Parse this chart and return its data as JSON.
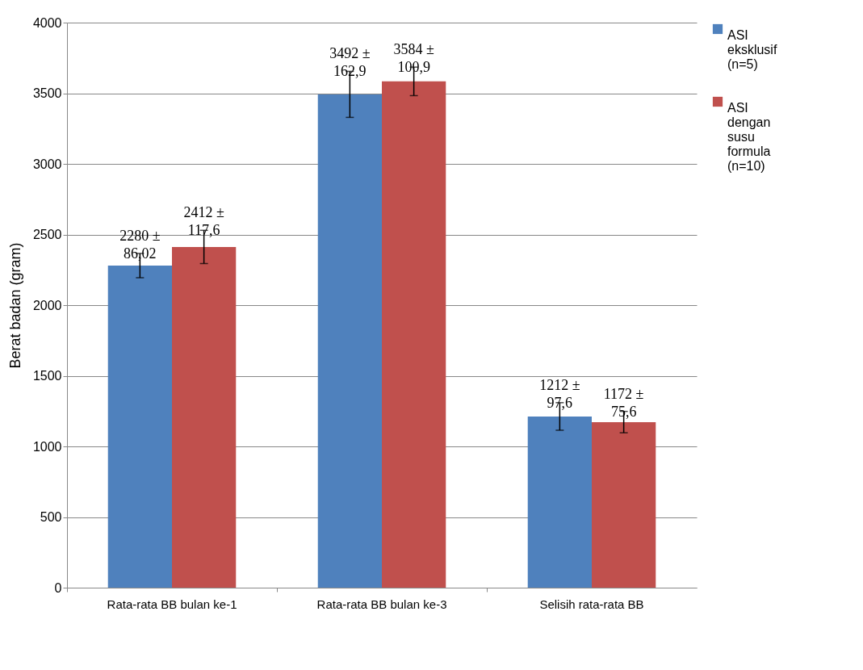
{
  "chart_data": {
    "type": "bar",
    "ylabel": "Berat badan (gram)",
    "categories": [
      "Rata-rata BB bulan ke-1",
      "Rata-rata BB bulan ke-3",
      "Selisih rata-rata BB"
    ],
    "series": [
      {
        "name": "ASI eksklusif (n=5)",
        "color": "#4f81bd",
        "values": [
          2280,
          3492,
          1212
        ],
        "errors": [
          86.02,
          162.9,
          97.6
        ],
        "value_labels": [
          "2280 ± 86,02",
          "3492 ± 162,9",
          "1212 ± 97,6"
        ]
      },
      {
        "name": "ASI dengan susu formula (n=10)",
        "color": "#c0504d",
        "values": [
          2412,
          3584,
          1172
        ],
        "errors": [
          117.6,
          100.9,
          75.6
        ],
        "value_labels": [
          "2412 ± 117,6",
          "3584 ± 100,9",
          "1172 ± 75,6"
        ]
      }
    ],
    "ylim": [
      0,
      4000
    ],
    "yticks": [
      0,
      500,
      1000,
      1500,
      2000,
      2500,
      3000,
      3500,
      4000
    ],
    "grid": "y",
    "legend": "right"
  }
}
